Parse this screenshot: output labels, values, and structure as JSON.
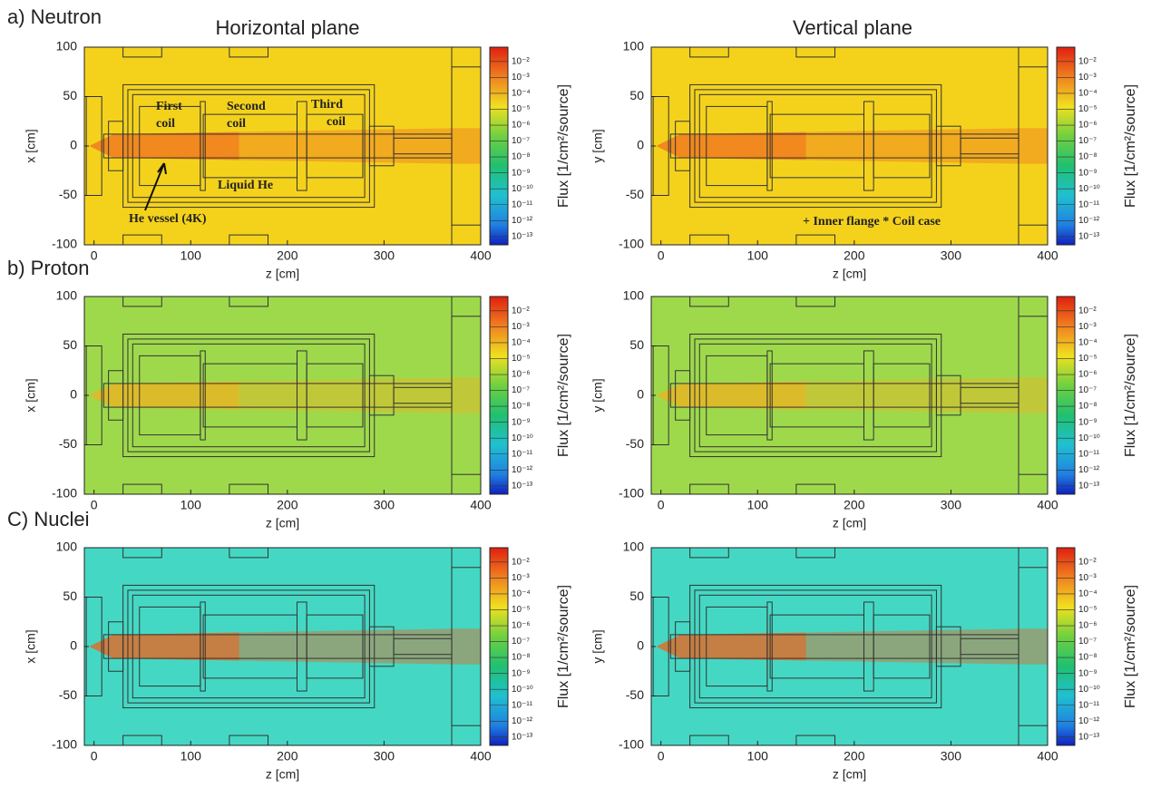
{
  "figure": {
    "column_titles": [
      "Horizontal plane",
      "Vertical plane"
    ],
    "row_labels": [
      "a) Neutron",
      "b) Proton",
      "C) Nuclei"
    ]
  },
  "chart_data": [
    {
      "type": "heatmap",
      "xlabel": "z [cm]",
      "ylabel": "x [cm]",
      "xlim": [
        -10,
        400
      ],
      "ylim": [
        -100,
        100
      ],
      "xticks": [
        0,
        100,
        200,
        300,
        400
      ],
      "yticks": [
        -100,
        -50,
        0,
        50,
        100
      ],
      "color": "#f4d21c",
      "beam_color": "#f07020",
      "colorbar": {
        "label": "Flux [1/cm²/source]",
        "scale": "log",
        "lim": [
          0.08,
          3e-14
        ],
        "ticks": [
          {
            "value": 0.01,
            "label": "10⁻²"
          },
          {
            "value": 0.001,
            "label": "10⁻³"
          },
          {
            "value": 0.0001,
            "label": "10⁻⁴"
          },
          {
            "value": 1e-05,
            "label": "10⁻⁵"
          },
          {
            "value": 1e-06,
            "label": "10⁻⁶"
          },
          {
            "value": 1e-07,
            "label": "10⁻⁷"
          },
          {
            "value": 1e-08,
            "label": "10⁻⁸"
          },
          {
            "value": 1e-09,
            "label": "10⁻⁹"
          },
          {
            "value": 1e-10,
            "label": "10⁻¹⁰"
          },
          {
            "value": 1e-11,
            "label": "10⁻¹¹"
          },
          {
            "value": 1e-12,
            "label": "10⁻¹²"
          },
          {
            "value": 1e-13,
            "label": "10⁻¹³"
          }
        ]
      },
      "annotations": [
        "First",
        "coil",
        "Second",
        "coil",
        "Third",
        "coil",
        "Liquid He",
        "He vessel (4K)"
      ]
    },
    {
      "type": "heatmap",
      "xlabel": "z [cm]",
      "ylabel": "y [cm]",
      "xlim": [
        -10,
        400
      ],
      "ylim": [
        -100,
        100
      ],
      "xticks": [
        0,
        100,
        200,
        300,
        400
      ],
      "yticks": [
        -100,
        -50,
        0,
        50,
        100
      ],
      "color": "#f4d21c",
      "beam_color": "#f07020",
      "colorbar": {
        "label": "Flux [1/cm²/source]",
        "scale": "log",
        "lim": [
          0.08,
          3e-14
        ],
        "ticks": [
          {
            "value": 0.01,
            "label": "10⁻²"
          },
          {
            "value": 0.001,
            "label": "10⁻³"
          },
          {
            "value": 0.0001,
            "label": "10⁻⁴"
          },
          {
            "value": 1e-05,
            "label": "10⁻⁵"
          },
          {
            "value": 1e-06,
            "label": "10⁻⁶"
          },
          {
            "value": 1e-07,
            "label": "10⁻⁷"
          },
          {
            "value": 1e-08,
            "label": "10⁻⁸"
          },
          {
            "value": 1e-09,
            "label": "10⁻⁹"
          },
          {
            "value": 1e-10,
            "label": "10⁻¹⁰"
          },
          {
            "value": 1e-11,
            "label": "10⁻¹¹"
          },
          {
            "value": 1e-12,
            "label": "10⁻¹²"
          },
          {
            "value": 1e-13,
            "label": "10⁻¹³"
          }
        ]
      },
      "annotations": [
        "+ Inner flange * Coil case"
      ]
    },
    {
      "type": "heatmap",
      "xlabel": "z [cm]",
      "ylabel": "x [cm]",
      "xlim": [
        -10,
        400
      ],
      "ylim": [
        -100,
        100
      ],
      "xticks": [
        0,
        100,
        200,
        300,
        400
      ],
      "yticks": [
        -100,
        -50,
        0,
        50,
        100
      ],
      "color": "#9ed94c",
      "beam_color": "#f0b020",
      "colorbar": {
        "label": "Flux [1/cm²/source]",
        "scale": "log",
        "lim": [
          0.08,
          3e-14
        ],
        "ticks": [
          {
            "value": 0.01,
            "label": "10⁻²"
          },
          {
            "value": 0.001,
            "label": "10⁻³"
          },
          {
            "value": 0.0001,
            "label": "10⁻⁴"
          },
          {
            "value": 1e-05,
            "label": "10⁻⁵"
          },
          {
            "value": 1e-06,
            "label": "10⁻⁶"
          },
          {
            "value": 1e-07,
            "label": "10⁻⁷"
          },
          {
            "value": 1e-08,
            "label": "10⁻⁸"
          },
          {
            "value": 1e-09,
            "label": "10⁻⁹"
          },
          {
            "value": 1e-10,
            "label": "10⁻¹⁰"
          },
          {
            "value": 1e-11,
            "label": "10⁻¹¹"
          },
          {
            "value": 1e-12,
            "label": "10⁻¹²"
          },
          {
            "value": 1e-13,
            "label": "10⁻¹³"
          }
        ]
      }
    },
    {
      "type": "heatmap",
      "xlabel": "z [cm]",
      "ylabel": "y [cm]",
      "xlim": [
        -10,
        400
      ],
      "ylim": [
        -100,
        100
      ],
      "xticks": [
        0,
        100,
        200,
        300,
        400
      ],
      "yticks": [
        -100,
        -50,
        0,
        50,
        100
      ],
      "color": "#9ed94c",
      "beam_color": "#f0b020",
      "colorbar": {
        "label": "Flux [1/cm²/source]",
        "scale": "log",
        "lim": [
          0.08,
          3e-14
        ],
        "ticks": [
          {
            "value": 0.01,
            "label": "10⁻²"
          },
          {
            "value": 0.001,
            "label": "10⁻³"
          },
          {
            "value": 0.0001,
            "label": "10⁻⁴"
          },
          {
            "value": 1e-05,
            "label": "10⁻⁵"
          },
          {
            "value": 1e-06,
            "label": "10⁻⁶"
          },
          {
            "value": 1e-07,
            "label": "10⁻⁷"
          },
          {
            "value": 1e-08,
            "label": "10⁻⁸"
          },
          {
            "value": 1e-09,
            "label": "10⁻⁹"
          },
          {
            "value": 1e-10,
            "label": "10⁻¹⁰"
          },
          {
            "value": 1e-11,
            "label": "10⁻¹¹"
          },
          {
            "value": 1e-12,
            "label": "10⁻¹²"
          },
          {
            "value": 1e-13,
            "label": "10⁻¹³"
          }
        ]
      }
    },
    {
      "type": "heatmap",
      "xlabel": "z [cm]",
      "ylabel": "x [cm]",
      "xlim": [
        -10,
        400
      ],
      "ylim": [
        -100,
        100
      ],
      "xticks": [
        0,
        100,
        200,
        300,
        400
      ],
      "yticks": [
        -100,
        -50,
        0,
        50,
        100
      ],
      "color": "#44d8c4",
      "beam_color": "#f06018",
      "colorbar": {
        "label": "Flux [1/cm²/source]",
        "scale": "log",
        "lim": [
          0.08,
          3e-14
        ],
        "ticks": [
          {
            "value": 0.01,
            "label": "10⁻²"
          },
          {
            "value": 0.001,
            "label": "10⁻³"
          },
          {
            "value": 0.0001,
            "label": "10⁻⁴"
          },
          {
            "value": 1e-05,
            "label": "10⁻⁵"
          },
          {
            "value": 1e-06,
            "label": "10⁻⁶"
          },
          {
            "value": 1e-07,
            "label": "10⁻⁷"
          },
          {
            "value": 1e-08,
            "label": "10⁻⁸"
          },
          {
            "value": 1e-09,
            "label": "10⁻⁹"
          },
          {
            "value": 1e-10,
            "label": "10⁻¹⁰"
          },
          {
            "value": 1e-11,
            "label": "10⁻¹¹"
          },
          {
            "value": 1e-12,
            "label": "10⁻¹²"
          },
          {
            "value": 1e-13,
            "label": "10⁻¹³"
          }
        ]
      }
    },
    {
      "type": "heatmap",
      "xlabel": "z [cm]",
      "ylabel": "y [cm]",
      "xlim": [
        -10,
        400
      ],
      "ylim": [
        -100,
        100
      ],
      "xticks": [
        0,
        100,
        200,
        300,
        400
      ],
      "yticks": [
        -100,
        -50,
        0,
        50,
        100
      ],
      "color": "#44d8c4",
      "beam_color": "#f06018",
      "colorbar": {
        "label": "Flux [1/cm²/source]",
        "scale": "log",
        "lim": [
          0.08,
          3e-14
        ],
        "ticks": [
          {
            "value": 0.01,
            "label": "10⁻²"
          },
          {
            "value": 0.001,
            "label": "10⁻³"
          },
          {
            "value": 0.0001,
            "label": "10⁻⁴"
          },
          {
            "value": 1e-05,
            "label": "10⁻⁵"
          },
          {
            "value": 1e-06,
            "label": "10⁻⁶"
          },
          {
            "value": 1e-07,
            "label": "10⁻⁷"
          },
          {
            "value": 1e-08,
            "label": "10⁻⁸"
          },
          {
            "value": 1e-09,
            "label": "10⁻⁹"
          },
          {
            "value": 1e-10,
            "label": "10⁻¹⁰"
          },
          {
            "value": 1e-11,
            "label": "10⁻¹¹"
          },
          {
            "value": 1e-12,
            "label": "10⁻¹²"
          },
          {
            "value": 1e-13,
            "label": "10⁻¹³"
          }
        ]
      }
    }
  ]
}
